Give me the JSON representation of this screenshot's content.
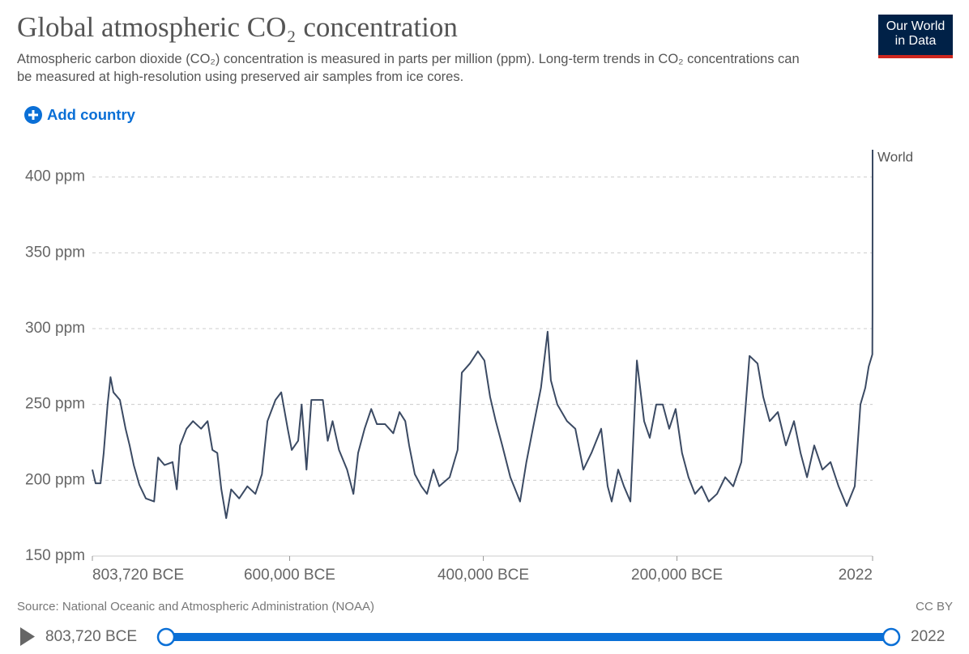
{
  "chart_data": {
    "type": "line",
    "title": "Global atmospheric CO₂ concentration",
    "subtitle": "Atmospheric carbon dioxide (CO₂) concentration is measured in parts per million (ppm). Long-term trends in CO₂ concentrations can be measured at high-resolution using preserved air samples from ice cores.",
    "x": [
      -803720,
      -800400,
      -795300,
      -792000,
      -788000,
      -785000,
      -782000,
      -775300,
      -769400,
      -765200,
      -761000,
      -755200,
      -748500,
      -740000,
      -735900,
      -729200,
      -720900,
      -716500,
      -713200,
      -706500,
      -699800,
      -691400,
      -684700,
      -679700,
      -674700,
      -670500,
      -665500,
      -660400,
      -652100,
      -643700,
      -635400,
      -628600,
      -622900,
      -614600,
      -608700,
      -602000,
      -597800,
      -591200,
      -587600,
      -582600,
      -577600,
      -570900,
      -565700,
      -560700,
      -555600,
      -549000,
      -540700,
      -534100,
      -529300,
      -522600,
      -515700,
      -509900,
      -501400,
      -493000,
      -486500,
      -480600,
      -476600,
      -470700,
      -463900,
      -458200,
      -451500,
      -445500,
      -434700,
      -426500,
      -422200,
      -413800,
      -405500,
      -398800,
      -393000,
      -387100,
      -380400,
      -372100,
      -362000,
      -355500,
      -348800,
      -340400,
      -333600,
      -330200,
      -323500,
      -313600,
      -305000,
      -296700,
      -288300,
      -278300,
      -271600,
      -267400,
      -260700,
      -254800,
      -248100,
      -241400,
      -233900,
      -228100,
      -221400,
      -214700,
      -208000,
      -201400,
      -194800,
      -188100,
      -181400,
      -174500,
      -167200,
      -158600,
      -150200,
      -141900,
      -133500,
      -125100,
      -116800,
      -110900,
      -104200,
      -95800,
      -87500,
      -79100,
      -72400,
      -65700,
      -58200,
      -49800,
      -41400,
      -33100,
      -24700,
      -16400,
      -10500,
      -5500,
      -2000,
      1800,
      1950,
      1980,
      2000,
      2022
    ],
    "series": [
      {
        "name": "World",
        "color": "#3b4a63",
        "values": [
          207,
          198,
          198,
          218,
          250,
          268,
          258,
          253,
          234,
          223,
          210,
          197,
          188,
          186,
          215,
          210,
          212,
          194,
          223,
          234,
          239,
          234,
          239,
          220,
          218,
          194,
          175,
          194,
          188,
          196,
          191,
          204,
          239,
          253,
          258,
          234,
          220,
          226,
          250,
          207,
          253,
          253,
          253,
          226,
          239,
          220,
          207,
          191,
          218,
          234,
          247,
          237,
          237,
          231,
          245,
          239,
          223,
          204,
          196,
          191,
          207,
          196,
          202,
          220,
          271,
          277,
          285,
          279,
          255,
          239,
          223,
          202,
          186,
          212,
          234,
          261,
          298,
          266,
          250,
          239,
          234,
          207,
          218,
          234,
          196,
          186,
          207,
          196,
          186,
          279,
          239,
          228,
          250,
          250,
          234,
          247,
          218,
          202,
          191,
          196,
          186,
          191,
          202,
          196,
          212,
          282,
          277,
          255,
          239,
          245,
          223,
          239,
          218,
          202,
          223,
          207,
          212,
          196,
          183,
          196,
          250,
          261,
          275,
          283,
          311,
          339,
          370,
          418
        ]
      }
    ],
    "xlim": [
      -803720,
      2022
    ],
    "xticks": [
      {
        "value": -803720,
        "label": "803,720 BCE"
      },
      {
        "value": -600000,
        "label": "600,000 BCE"
      },
      {
        "value": -400000,
        "label": "400,000 BCE"
      },
      {
        "value": -200000,
        "label": "200,000 BCE"
      },
      2022
    ],
    "ylim": [
      150,
      418
    ],
    "yticks": [
      {
        "value": 150,
        "label": "150 ppm"
      },
      {
        "value": 200,
        "label": "200 ppm"
      },
      {
        "value": 250,
        "label": "250 ppm"
      },
      {
        "value": 300,
        "label": "300 ppm"
      },
      {
        "value": 350,
        "label": "350 ppm"
      },
      {
        "value": 400,
        "label": "400 ppm"
      }
    ],
    "grid": true,
    "source": "Source: National Oceanic and Atmospheric Administration (NOAA)",
    "license": "CC BY"
  },
  "logo": [
    "Our World",
    "in Data"
  ],
  "controls": {
    "add_country": "Add country",
    "timeline_start": "803,720 BCE",
    "timeline_end": "2022"
  }
}
